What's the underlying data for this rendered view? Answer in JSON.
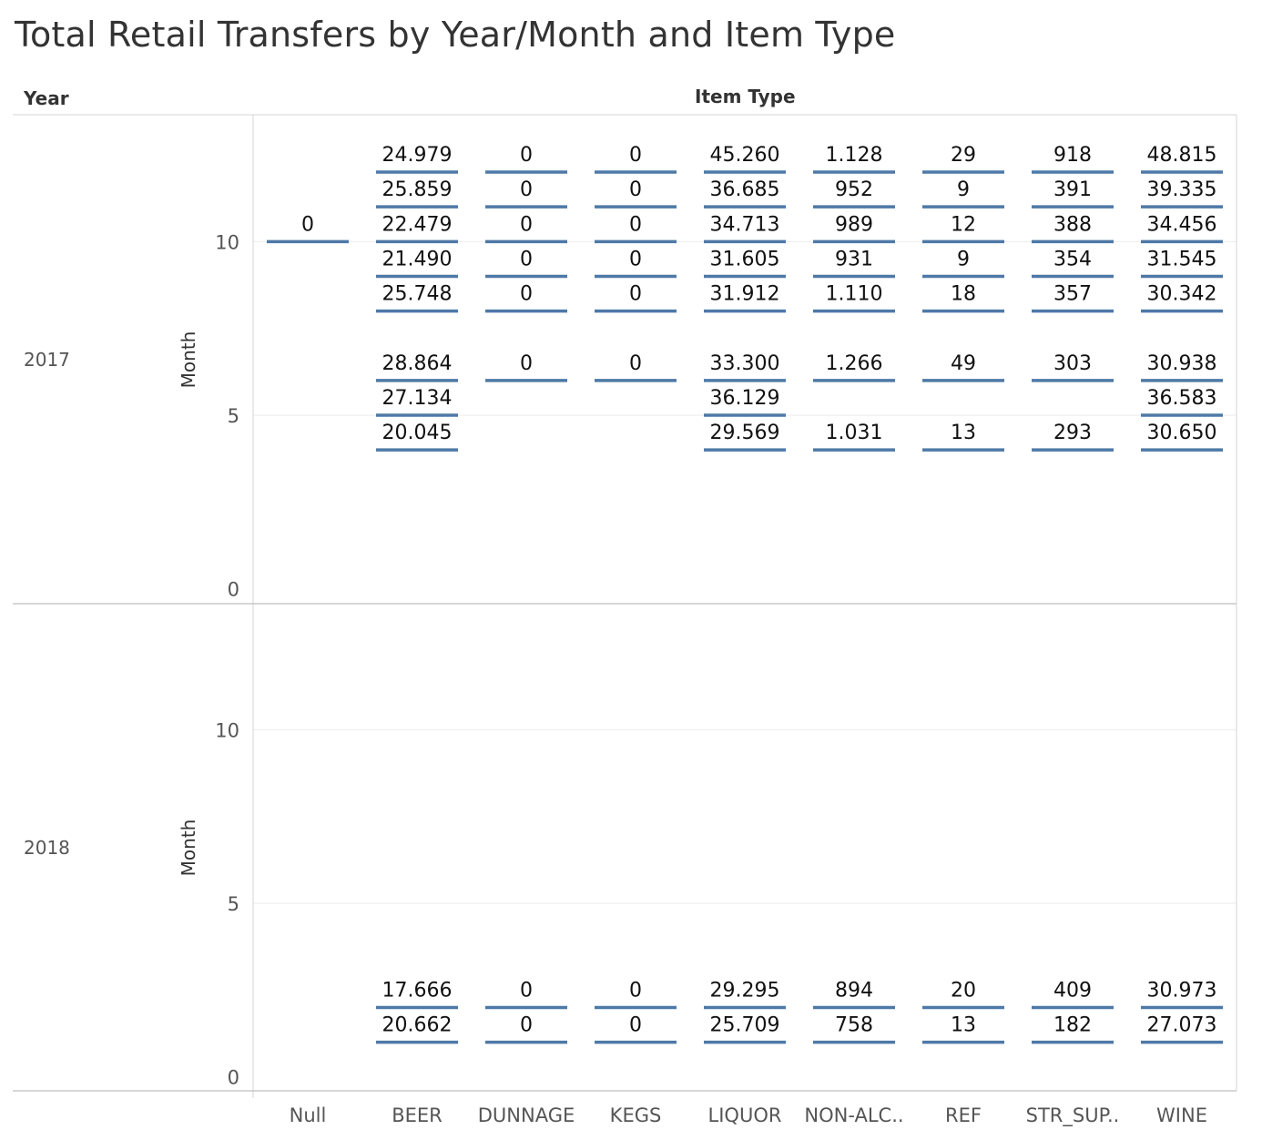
{
  "title": "Total Retail Transfers by Year/Month  and Item Type",
  "headers": {
    "year": "Year",
    "item_type": "Item Type",
    "month_axis": "Month"
  },
  "chart_data": {
    "type": "table",
    "mark": "horizontal tick with value label",
    "columns": [
      "Null",
      "BEER",
      "DUNNAGE",
      "KEGS",
      "LIQUOR",
      "NON-ALC..",
      "REF",
      "STR_SUP..",
      "WINE"
    ],
    "rows": [
      "2017",
      "2018"
    ],
    "y_axis": {
      "label": "Month",
      "ticks": [
        0,
        5,
        10
      ],
      "range": [
        -0.4,
        13.6
      ],
      "grid": true
    },
    "mark_color": "#4e79a7",
    "panels": [
      {
        "year": "2017",
        "cells": {
          "Null": [
            {
              "month": 10,
              "label": "0"
            }
          ],
          "BEER": [
            {
              "month": 12,
              "label": "24.979"
            },
            {
              "month": 11,
              "label": "25.859"
            },
            {
              "month": 10,
              "label": "22.479"
            },
            {
              "month": 9,
              "label": "21.490"
            },
            {
              "month": 8,
              "label": "25.748"
            },
            {
              "month": 6,
              "label": "28.864"
            },
            {
              "month": 5,
              "label": "27.134"
            },
            {
              "month": 4,
              "label": "20.045"
            }
          ],
          "DUNNAGE": [
            {
              "month": 12,
              "label": "0"
            },
            {
              "month": 11,
              "label": "0"
            },
            {
              "month": 10,
              "label": "0"
            },
            {
              "month": 9,
              "label": "0"
            },
            {
              "month": 8,
              "label": "0"
            },
            {
              "month": 6,
              "label": "0"
            }
          ],
          "KEGS": [
            {
              "month": 12,
              "label": "0"
            },
            {
              "month": 11,
              "label": "0"
            },
            {
              "month": 10,
              "label": "0"
            },
            {
              "month": 9,
              "label": "0"
            },
            {
              "month": 8,
              "label": "0"
            },
            {
              "month": 6,
              "label": "0"
            }
          ],
          "LIQUOR": [
            {
              "month": 12,
              "label": "45.260"
            },
            {
              "month": 11,
              "label": "36.685"
            },
            {
              "month": 10,
              "label": "34.713"
            },
            {
              "month": 9,
              "label": "31.605"
            },
            {
              "month": 8,
              "label": "31.912"
            },
            {
              "month": 6,
              "label": "33.300"
            },
            {
              "month": 5,
              "label": "36.129"
            },
            {
              "month": 4,
              "label": "29.569"
            }
          ],
          "NON-ALC..": [
            {
              "month": 12,
              "label": "1.128"
            },
            {
              "month": 11,
              "label": "952"
            },
            {
              "month": 10,
              "label": "989"
            },
            {
              "month": 9,
              "label": "931"
            },
            {
              "month": 8,
              "label": "1.110"
            },
            {
              "month": 6,
              "label": "1.266"
            },
            {
              "month": 4,
              "label": "1.031"
            }
          ],
          "REF": [
            {
              "month": 12,
              "label": "29"
            },
            {
              "month": 11,
              "label": "9"
            },
            {
              "month": 10,
              "label": "12"
            },
            {
              "month": 9,
              "label": "9"
            },
            {
              "month": 8,
              "label": "18"
            },
            {
              "month": 6,
              "label": "49"
            },
            {
              "month": 4,
              "label": "13"
            }
          ],
          "STR_SUP..": [
            {
              "month": 12,
              "label": "918"
            },
            {
              "month": 11,
              "label": "391"
            },
            {
              "month": 10,
              "label": "388"
            },
            {
              "month": 9,
              "label": "354"
            },
            {
              "month": 8,
              "label": "357"
            },
            {
              "month": 6,
              "label": "303"
            },
            {
              "month": 4,
              "label": "293"
            }
          ],
          "WINE": [
            {
              "month": 12,
              "label": "48.815"
            },
            {
              "month": 11,
              "label": "39.335"
            },
            {
              "month": 10,
              "label": "34.456"
            },
            {
              "month": 9,
              "label": "31.545"
            },
            {
              "month": 8,
              "label": "30.342"
            },
            {
              "month": 6,
              "label": "30.938"
            },
            {
              "month": 5,
              "label": "36.583"
            },
            {
              "month": 4,
              "label": "30.650"
            }
          ]
        }
      },
      {
        "year": "2018",
        "cells": {
          "Null": [],
          "BEER": [
            {
              "month": 2,
              "label": "17.666"
            },
            {
              "month": 1,
              "label": "20.662"
            }
          ],
          "DUNNAGE": [
            {
              "month": 2,
              "label": "0"
            },
            {
              "month": 1,
              "label": "0"
            }
          ],
          "KEGS": [
            {
              "month": 2,
              "label": "0"
            },
            {
              "month": 1,
              "label": "0"
            }
          ],
          "LIQUOR": [
            {
              "month": 2,
              "label": "29.295"
            },
            {
              "month": 1,
              "label": "25.709"
            }
          ],
          "NON-ALC..": [
            {
              "month": 2,
              "label": "894"
            },
            {
              "month": 1,
              "label": "758"
            }
          ],
          "REF": [
            {
              "month": 2,
              "label": "20"
            },
            {
              "month": 1,
              "label": "13"
            }
          ],
          "STR_SUP..": [
            {
              "month": 2,
              "label": "409"
            },
            {
              "month": 1,
              "label": "182"
            }
          ],
          "WINE": [
            {
              "month": 2,
              "label": "30.973"
            },
            {
              "month": 1,
              "label": "27.073"
            }
          ]
        }
      }
    ]
  }
}
